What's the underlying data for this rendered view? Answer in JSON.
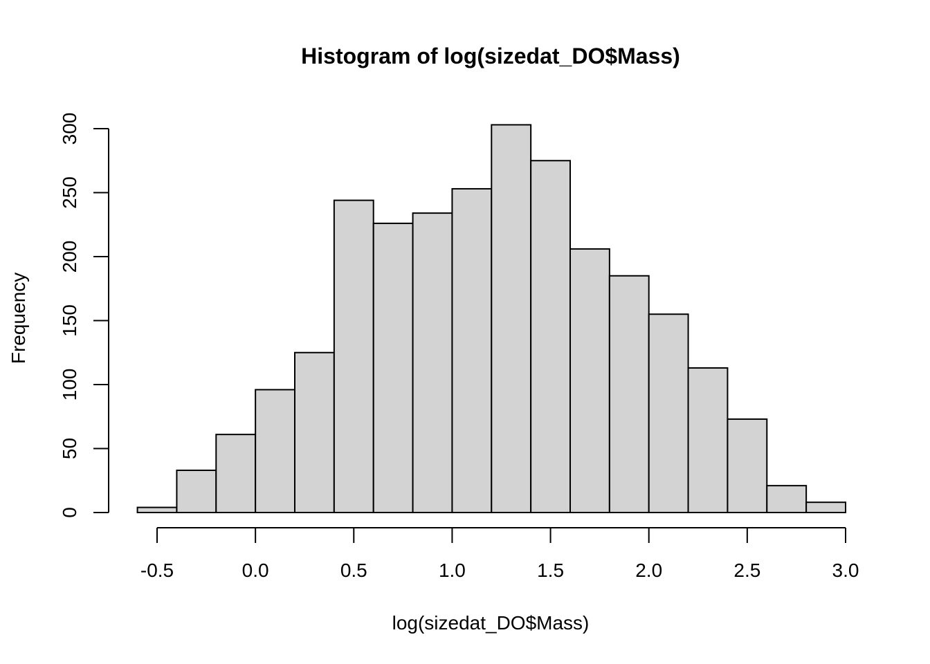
{
  "chart_data": {
    "type": "bar",
    "title": "Histogram of log(sizedat_DO$Mass)",
    "xlabel": "log(sizedat_DO$Mass)",
    "ylabel": "Frequency",
    "bar_color": "#d3d3d3",
    "edge_color": "#000000",
    "bin_width": 0.2,
    "bins": [
      {
        "x0": -0.6,
        "x1": -0.4,
        "count": 4
      },
      {
        "x0": -0.4,
        "x1": -0.2,
        "count": 33
      },
      {
        "x0": -0.2,
        "x1": 0.0,
        "count": 61
      },
      {
        "x0": 0.0,
        "x1": 0.2,
        "count": 96
      },
      {
        "x0": 0.2,
        "x1": 0.4,
        "count": 125
      },
      {
        "x0": 0.4,
        "x1": 0.6,
        "count": 244
      },
      {
        "x0": 0.6,
        "x1": 0.8,
        "count": 226
      },
      {
        "x0": 0.8,
        "x1": 1.0,
        "count": 234
      },
      {
        "x0": 1.0,
        "x1": 1.2,
        "count": 253
      },
      {
        "x0": 1.2,
        "x1": 1.4,
        "count": 303
      },
      {
        "x0": 1.4,
        "x1": 1.6,
        "count": 275
      },
      {
        "x0": 1.6,
        "x1": 1.8,
        "count": 206
      },
      {
        "x0": 1.8,
        "x1": 2.0,
        "count": 185
      },
      {
        "x0": 2.0,
        "x1": 2.2,
        "count": 155
      },
      {
        "x0": 2.2,
        "x1": 2.4,
        "count": 113
      },
      {
        "x0": 2.4,
        "x1": 2.6,
        "count": 73
      },
      {
        "x0": 2.6,
        "x1": 2.8,
        "count": 21
      },
      {
        "x0": 2.8,
        "x1": 3.0,
        "count": 8
      }
    ],
    "xlim": [
      -0.6,
      3.0
    ],
    "ylim": [
      0,
      303
    ],
    "x_ticks": [
      -0.5,
      0.0,
      0.5,
      1.0,
      1.5,
      2.0,
      2.5,
      3.0
    ],
    "x_tick_labels": [
      "-0.5",
      "0.0",
      "0.5",
      "1.0",
      "1.5",
      "2.0",
      "2.5",
      "3.0"
    ],
    "y_ticks": [
      0,
      50,
      100,
      150,
      200,
      250,
      300
    ],
    "y_tick_labels": [
      "0",
      "50",
      "100",
      "150",
      "200",
      "250",
      "300"
    ],
    "grid": false,
    "legend": "none"
  }
}
